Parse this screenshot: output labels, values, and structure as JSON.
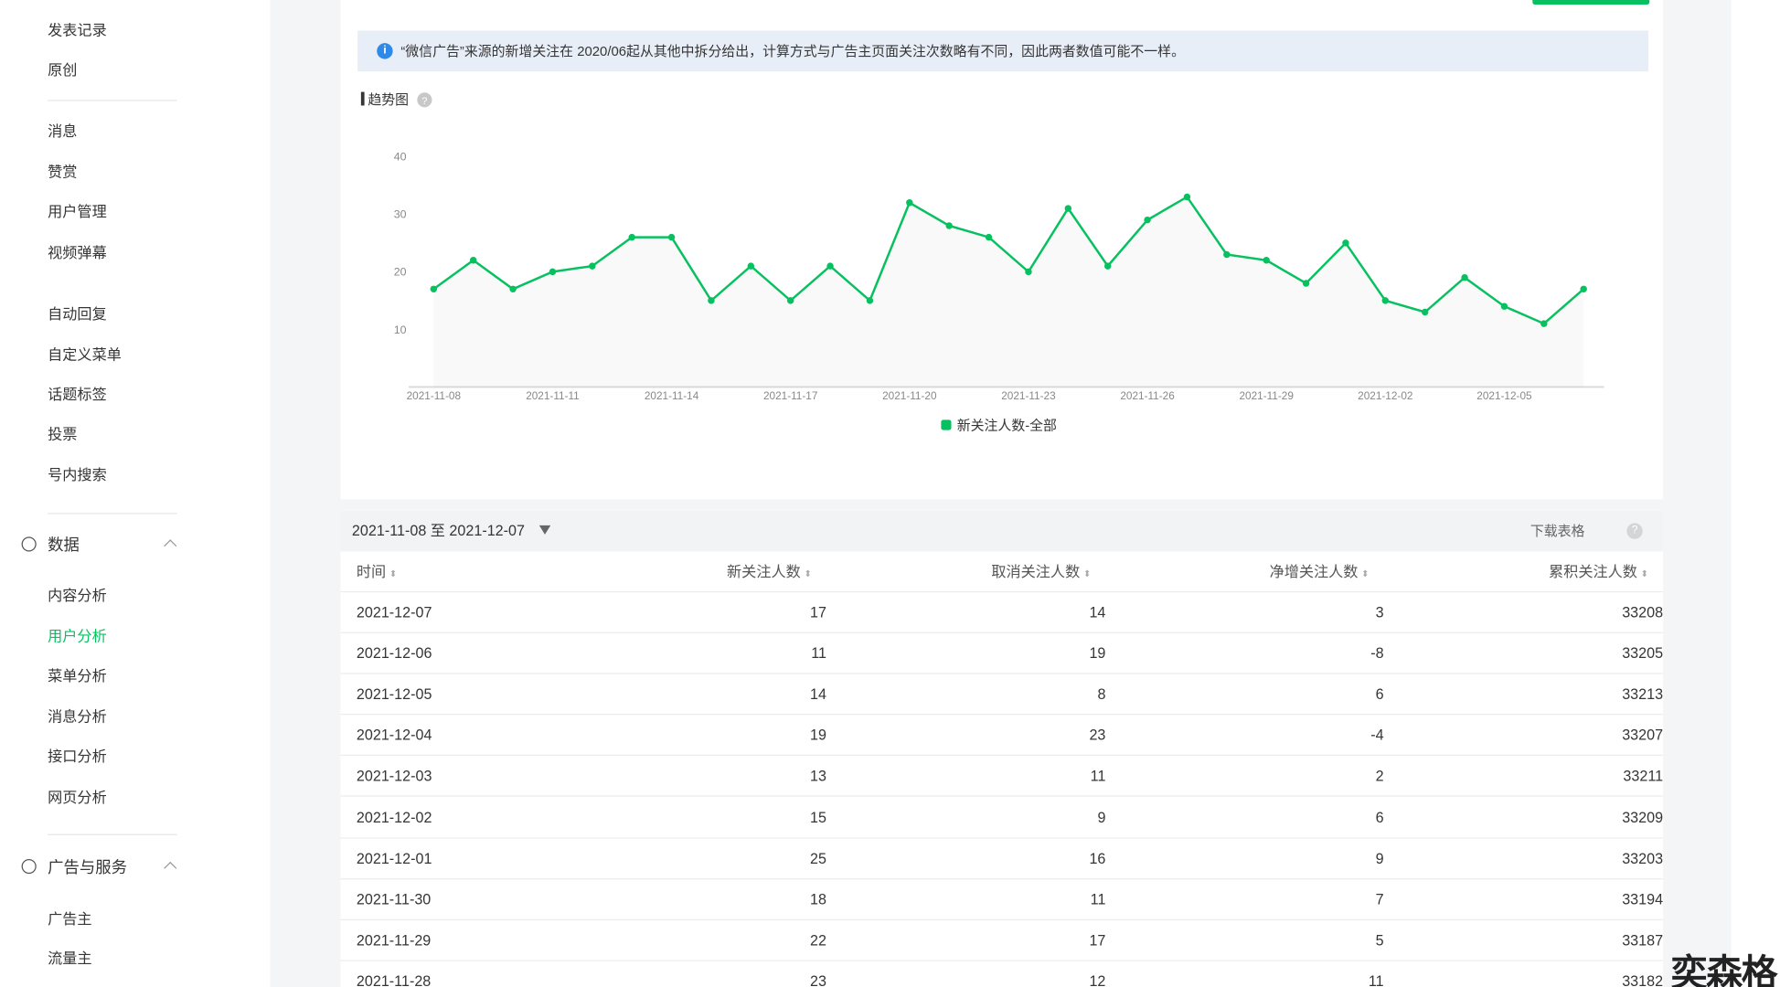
{
  "sidebar": {
    "groups": [
      [
        "发表记录",
        "原创"
      ],
      [
        "消息",
        "赞赏",
        "用户管理",
        "视频弹幕"
      ],
      [
        "自动回复",
        "自定义菜单",
        "话题标签",
        "投票",
        "号内搜索"
      ]
    ],
    "sections": [
      {
        "title": "数据",
        "items": [
          "内容分析",
          "用户分析",
          "菜单分析",
          "消息分析",
          "接口分析",
          "网页分析"
        ]
      },
      {
        "title": "广告与服务",
        "items": [
          "广告主",
          "流量主"
        ]
      }
    ]
  },
  "notice": "“微信广告”来源的新增关注在 2020/06起从其他中拆分给出，计算方式与广告主页面关注次数略有不同，因此两者数值可能不一样。",
  "chart_data": {
    "type": "line",
    "title": "趋势图",
    "categories": [
      "2021-11-08",
      null,
      null,
      "2021-11-11",
      null,
      null,
      "2021-11-14",
      null,
      null,
      "2021-11-17",
      null,
      null,
      "2021-11-20",
      null,
      null,
      "2021-11-23",
      null,
      null,
      "2021-11-26",
      null,
      null,
      "2021-11-29",
      null,
      null,
      "2021-12-02",
      null,
      null,
      "2021-12-05",
      null,
      null
    ],
    "series": [
      {
        "name": "新关注人数-全部",
        "color": "#07c160",
        "values": [
          17,
          22,
          17,
          20,
          21,
          26,
          26,
          15,
          21,
          15,
          21,
          15,
          32,
          28,
          26,
          20,
          31,
          21,
          29,
          33,
          23,
          22,
          18,
          25,
          15,
          13,
          19,
          14,
          11,
          17
        ]
      }
    ],
    "ylim": [
      0,
      40
    ],
    "yticks": [
      10,
      20,
      30,
      40
    ],
    "grid": false,
    "legend": "bottom"
  },
  "table": {
    "date_range": "2021-11-08 至 2021-12-07",
    "download": "下载表格",
    "columns": [
      "时间",
      "新关注人数",
      "取消关注人数",
      "净增关注人数",
      "累积关注人数"
    ],
    "rows": [
      [
        "2021-12-07",
        "17",
        "14",
        "3",
        "33208"
      ],
      [
        "2021-12-06",
        "11",
        "19",
        "-8",
        "33205"
      ],
      [
        "2021-12-05",
        "14",
        "8",
        "6",
        "33213"
      ],
      [
        "2021-12-04",
        "19",
        "23",
        "-4",
        "33207"
      ],
      [
        "2021-12-03",
        "13",
        "11",
        "2",
        "33211"
      ],
      [
        "2021-12-02",
        "15",
        "9",
        "6",
        "33209"
      ],
      [
        "2021-12-01",
        "25",
        "16",
        "9",
        "33203"
      ],
      [
        "2021-11-30",
        "18",
        "11",
        "7",
        "33194"
      ],
      [
        "2021-11-29",
        "22",
        "17",
        "5",
        "33187"
      ],
      [
        "2021-11-28",
        "23",
        "12",
        "11",
        "33182"
      ]
    ]
  },
  "watermark": "奕森格"
}
